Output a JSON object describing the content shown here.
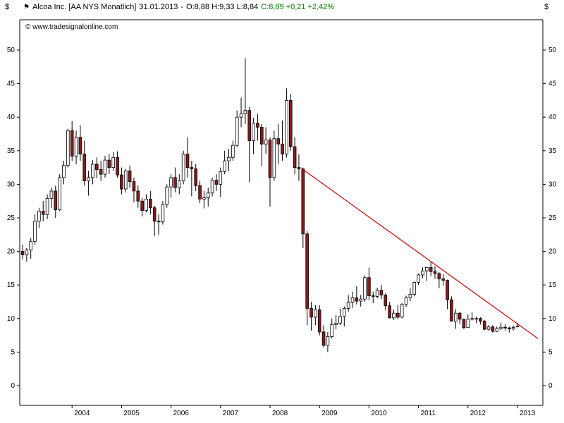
{
  "header": {
    "currency": "$",
    "symbol_flag": "⚑",
    "instrument": "Alcoa Inc. [AA NYS  Monatlich]",
    "date": "31.01.2013",
    "dash": "-",
    "open_high_low": "O:8,88 H:9,33 L:8,84",
    "close_change": "C:8,89 +0,21 +2,42%",
    "copyright": "© www.tradesignalonline.com"
  },
  "colors": {
    "up_candle": "#ffffff",
    "down_candle": "#8b1a1a",
    "candle_outline": "#000000",
    "axis": "#000000",
    "trendline": "#cc0000",
    "positive_text": "#008000"
  },
  "chart_data": {
    "type": "candlestick",
    "title": "Alcoa Inc. [AA NYS Monatlich]",
    "ylabel": "$",
    "ylim": [
      0,
      50
    ],
    "grid": false,
    "y_axis": {
      "ticks": [
        0,
        5,
        10,
        15,
        20,
        25,
        30,
        35,
        40,
        45,
        50
      ],
      "unit": "$",
      "sides": "both"
    },
    "x_axis": {
      "ticks": [
        "2004",
        "2005",
        "2006",
        "2007",
        "2008",
        "2009",
        "2010",
        "2011",
        "2012",
        "2013"
      ]
    },
    "candles": {
      "start": "2003-01",
      "interval": "monthly",
      "ohlc": [
        [
          20.0,
          21.0,
          18.8,
          19.5
        ],
        [
          19.5,
          20.5,
          18.5,
          20.2
        ],
        [
          20.2,
          22.0,
          18.9,
          21.5
        ],
        [
          21.5,
          25.5,
          21.0,
          24.5
        ],
        [
          24.5,
          26.5,
          23.5,
          26.0
        ],
        [
          26.0,
          27.5,
          24.5,
          25.5
        ],
        [
          25.5,
          28.5,
          24.8,
          27.9
        ],
        [
          27.9,
          29.5,
          26.5,
          29.0
        ],
        [
          29.0,
          29.8,
          25.0,
          26.2
        ],
        [
          26.2,
          31.5,
          26.0,
          31.0
        ],
        [
          31.0,
          33.5,
          30.0,
          32.8
        ],
        [
          32.8,
          38.3,
          32.5,
          38.0
        ],
        [
          38.0,
          39.4,
          33.5,
          34.2
        ],
        [
          34.2,
          38.0,
          33.0,
          37.0
        ],
        [
          37.0,
          38.8,
          33.5,
          34.5
        ],
        [
          34.5,
          36.5,
          29.8,
          30.5
        ],
        [
          30.5,
          32.0,
          28.3,
          31.0
        ],
        [
          31.0,
          33.6,
          30.0,
          33.0
        ],
        [
          33.0,
          34.0,
          30.9,
          32.2
        ],
        [
          32.2,
          33.5,
          30.5,
          31.5
        ],
        [
          31.5,
          34.2,
          31.0,
          33.6
        ],
        [
          33.6,
          34.5,
          31.5,
          32.5
        ],
        [
          32.5,
          34.8,
          32.0,
          34.0
        ],
        [
          34.0,
          34.9,
          31.0,
          31.4
        ],
        [
          31.4,
          32.5,
          28.5,
          29.3
        ],
        [
          29.3,
          32.3,
          28.8,
          32.0
        ],
        [
          32.0,
          32.8,
          29.5,
          30.4
        ],
        [
          30.4,
          31.0,
          27.3,
          29.0
        ],
        [
          29.0,
          29.8,
          26.5,
          27.5
        ],
        [
          27.5,
          28.0,
          25.2,
          26.1
        ],
        [
          26.1,
          28.5,
          25.8,
          27.8
        ],
        [
          27.8,
          29.0,
          25.5,
          26.5
        ],
        [
          26.5,
          26.8,
          22.3,
          24.5
        ],
        [
          24.5,
          25.5,
          22.5,
          24.4
        ],
        [
          24.4,
          27.5,
          24.0,
          27.0
        ],
        [
          27.0,
          30.0,
          26.5,
          29.6
        ],
        [
          29.6,
          31.5,
          28.0,
          31.0
        ],
        [
          31.0,
          32.5,
          28.8,
          29.5
        ],
        [
          29.5,
          31.5,
          28.5,
          30.5
        ],
        [
          30.5,
          35.0,
          30.0,
          34.5
        ],
        [
          34.5,
          37.0,
          31.0,
          32.5
        ],
        [
          32.5,
          33.5,
          28.2,
          32.3
        ],
        [
          32.3,
          33.0,
          29.0,
          29.8
        ],
        [
          29.8,
          30.5,
          27.2,
          27.8
        ],
        [
          27.8,
          29.0,
          26.4,
          28.0
        ],
        [
          28.0,
          29.5,
          26.7,
          28.7
        ],
        [
          28.7,
          31.0,
          28.2,
          30.6
        ],
        [
          30.6,
          31.5,
          29.0,
          30.0
        ],
        [
          30.0,
          32.5,
          28.1,
          31.9
        ],
        [
          31.9,
          35.0,
          31.5,
          33.5
        ],
        [
          33.5,
          35.3,
          32.0,
          34.0
        ],
        [
          34.0,
          36.5,
          33.5,
          35.8
        ],
        [
          35.8,
          41.0,
          35.5,
          40.0
        ],
        [
          40.0,
          42.9,
          38.5,
          40.5
        ],
        [
          40.5,
          48.8,
          39.0,
          41.0
        ],
        [
          41.0,
          41.5,
          30.3,
          36.5
        ],
        [
          36.5,
          39.9,
          34.5,
          39.1
        ],
        [
          39.1,
          40.5,
          36.5,
          38.5
        ],
        [
          38.5,
          39.0,
          32.7,
          36.0
        ],
        [
          36.0,
          38.5,
          34.5,
          36.6
        ],
        [
          36.6,
          37.0,
          26.7,
          31.0
        ],
        [
          31.0,
          38.0,
          30.5,
          36.8
        ],
        [
          36.8,
          39.0,
          33.0,
          36.0
        ],
        [
          36.0,
          39.5,
          33.5,
          34.5
        ],
        [
          34.5,
          44.3,
          34.0,
          42.5
        ],
        [
          42.5,
          43.5,
          35.0,
          35.6
        ],
        [
          35.6,
          37.0,
          31.5,
          32.5
        ],
        [
          32.5,
          34.5,
          30.5,
          32.3
        ],
        [
          32.3,
          32.5,
          20.5,
          22.6
        ],
        [
          22.6,
          23.0,
          9.0,
          11.5
        ],
        [
          11.5,
          12.5,
          8.2,
          10.2
        ],
        [
          10.2,
          12.0,
          9.0,
          11.3
        ],
        [
          11.3,
          12.0,
          7.5,
          8.0
        ],
        [
          8.0,
          9.0,
          5.7,
          6.0
        ],
        [
          6.0,
          8.0,
          5.0,
          7.3
        ],
        [
          7.3,
          10.0,
          7.0,
          9.1
        ],
        [
          9.1,
          10.5,
          8.4,
          9.3
        ],
        [
          9.3,
          11.5,
          9.0,
          10.3
        ],
        [
          10.3,
          11.8,
          8.8,
          11.5
        ],
        [
          11.5,
          13.5,
          11.0,
          12.4
        ],
        [
          12.4,
          14.0,
          11.6,
          13.1
        ],
        [
          13.1,
          14.8,
          12.1,
          12.6
        ],
        [
          12.6,
          13.5,
          11.8,
          12.9
        ],
        [
          12.9,
          16.4,
          12.5,
          16.1
        ],
        [
          16.1,
          17.6,
          12.7,
          13.4
        ],
        [
          13.4,
          14.0,
          12.3,
          13.3
        ],
        [
          13.3,
          14.6,
          13.0,
          14.2
        ],
        [
          14.2,
          15.0,
          12.9,
          13.5
        ],
        [
          13.5,
          13.8,
          11.2,
          11.9
        ],
        [
          11.9,
          12.5,
          10.0,
          10.1
        ],
        [
          10.1,
          11.3,
          9.8,
          10.8
        ],
        [
          10.8,
          12.0,
          9.9,
          10.2
        ],
        [
          10.2,
          12.3,
          10.0,
          12.1
        ],
        [
          12.1,
          13.4,
          11.7,
          13.1
        ],
        [
          13.1,
          14.5,
          12.6,
          13.6
        ],
        [
          13.6,
          15.5,
          13.3,
          15.4
        ],
        [
          15.4,
          16.7,
          15.0,
          16.5
        ],
        [
          16.5,
          17.6,
          16.0,
          17.1
        ],
        [
          17.1,
          17.7,
          15.6,
          17.6
        ],
        [
          17.6,
          18.5,
          16.3,
          17.0
        ],
        [
          17.0,
          17.8,
          15.9,
          16.7
        ],
        [
          16.7,
          16.9,
          14.5,
          15.9
        ],
        [
          15.9,
          16.6,
          14.9,
          15.7
        ],
        [
          15.7,
          15.8,
          11.4,
          12.8
        ],
        [
          12.8,
          13.3,
          9.6,
          9.6
        ],
        [
          9.6,
          11.4,
          8.45,
          10.8
        ],
        [
          10.8,
          11.0,
          9.2,
          9.9
        ],
        [
          9.9,
          10.0,
          8.4,
          8.65
        ],
        [
          8.65,
          10.6,
          8.6,
          9.9
        ],
        [
          9.9,
          10.9,
          9.7,
          10.0
        ],
        [
          10.0,
          10.3,
          9.3,
          10.0
        ],
        [
          10.0,
          10.2,
          9.1,
          9.6
        ],
        [
          9.6,
          9.8,
          8.3,
          8.4
        ],
        [
          8.4,
          9.0,
          8.2,
          8.75
        ],
        [
          8.75,
          9.0,
          7.9,
          8.1
        ],
        [
          8.1,
          8.8,
          7.97,
          8.5
        ],
        [
          8.5,
          9.4,
          8.3,
          8.7
        ],
        [
          8.7,
          9.2,
          8.2,
          8.6
        ],
        [
          8.6,
          8.8,
          7.9,
          8.45
        ],
        [
          8.45,
          8.95,
          8.2,
          8.68
        ],
        [
          8.88,
          9.33,
          8.84,
          8.89
        ]
      ]
    },
    "trendline": {
      "start_date": "2008-09",
      "start_value": 32.2,
      "end_date": "2013-06",
      "end_value": 7.0,
      "color": "#cc0000"
    }
  }
}
